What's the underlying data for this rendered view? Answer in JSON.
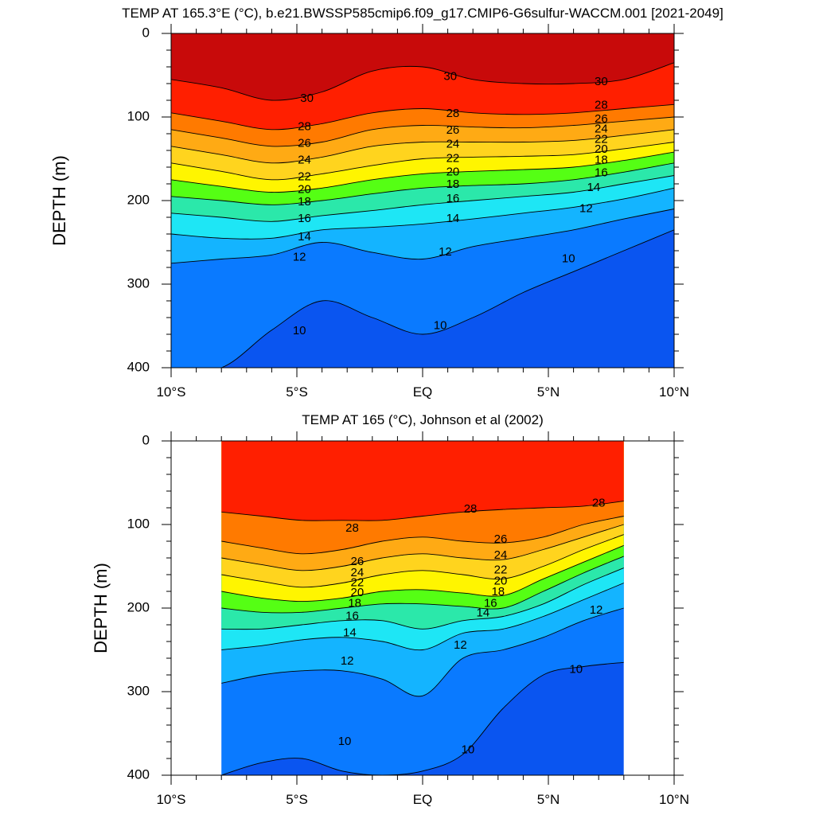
{
  "chart_data": [
    {
      "type": "contour",
      "title": "TEMP AT 165.3°E (°C), b.e21.BWSSP585cmip6.f09_g17.CMIP6-G6sulfur-WACCM.001 [2021-2049]",
      "ylabel": "DEPTH (m)",
      "xlabel": "",
      "xlim": [
        -10,
        10
      ],
      "ylim": [
        400,
        0
      ],
      "data_extent_x": [
        -10,
        10
      ],
      "x_ticks": [
        {
          "value": -10,
          "label": "10°S"
        },
        {
          "value": -5,
          "label": "5°S"
        },
        {
          "value": 0,
          "label": "EQ"
        },
        {
          "value": 5,
          "label": "5°N"
        },
        {
          "value": 10,
          "label": "10°N"
        }
      ],
      "y_ticks": [
        {
          "value": 0,
          "label": "0"
        },
        {
          "value": 100,
          "label": "100"
        },
        {
          "value": 200,
          "label": "200"
        },
        {
          "value": 300,
          "label": "300"
        },
        {
          "value": 400,
          "label": "400"
        }
      ],
      "isotherms": [
        {
          "value": 30,
          "depth": [
            55,
            65,
            80,
            70,
            45,
            40,
            55,
            60,
            60,
            55,
            35
          ]
        },
        {
          "value": 28,
          "depth": [
            95,
            105,
            115,
            108,
            95,
            90,
            95,
            97,
            95,
            90,
            85
          ]
        },
        {
          "value": 26,
          "depth": [
            115,
            125,
            135,
            130,
            115,
            110,
            112,
            113,
            110,
            105,
            100
          ]
        },
        {
          "value": 24,
          "depth": [
            135,
            145,
            155,
            148,
            135,
            130,
            130,
            130,
            128,
            122,
            115
          ]
        },
        {
          "value": 22,
          "depth": [
            155,
            165,
            175,
            168,
            158,
            150,
            148,
            147,
            145,
            138,
            130
          ]
        },
        {
          "value": 20,
          "depth": [
            175,
            183,
            190,
            185,
            175,
            168,
            165,
            163,
            160,
            152,
            142
          ]
        },
        {
          "value": 18,
          "depth": [
            195,
            200,
            205,
            200,
            192,
            185,
            182,
            180,
            175,
            166,
            155
          ]
        },
        {
          "value": 16,
          "depth": [
            215,
            220,
            225,
            218,
            212,
            205,
            200,
            195,
            190,
            180,
            170
          ]
        },
        {
          "value": 14,
          "depth": [
            240,
            245,
            245,
            235,
            232,
            228,
            222,
            215,
            208,
            198,
            185
          ]
        },
        {
          "value": 12,
          "depth": [
            275,
            270,
            265,
            250,
            262,
            270,
            255,
            245,
            235,
            222,
            210
          ]
        },
        {
          "value": 10,
          "depth": [
            440,
            400,
            355,
            320,
            340,
            360,
            340,
            310,
            285,
            260,
            235
          ]
        }
      ],
      "contour_labels": [
        {
          "value": "30",
          "x": -4.6,
          "y": 78
        },
        {
          "value": "28",
          "x": -4.7,
          "y": 112
        },
        {
          "value": "26",
          "x": -4.7,
          "y": 132
        },
        {
          "value": "24",
          "x": -4.7,
          "y": 152
        },
        {
          "value": "22",
          "x": -4.7,
          "y": 172
        },
        {
          "value": "20",
          "x": -4.7,
          "y": 187
        },
        {
          "value": "18",
          "x": -4.7,
          "y": 202
        },
        {
          "value": "16",
          "x": -4.7,
          "y": 222
        },
        {
          "value": "14",
          "x": -4.7,
          "y": 244
        },
        {
          "value": "12",
          "x": -4.9,
          "y": 268
        },
        {
          "value": "10",
          "x": -4.9,
          "y": 356
        },
        {
          "value": "30",
          "x": 1.1,
          "y": 52
        },
        {
          "value": "28",
          "x": 1.2,
          "y": 96
        },
        {
          "value": "26",
          "x": 1.2,
          "y": 116
        },
        {
          "value": "24",
          "x": 1.2,
          "y": 133
        },
        {
          "value": "22",
          "x": 1.2,
          "y": 150
        },
        {
          "value": "20",
          "x": 1.2,
          "y": 166
        },
        {
          "value": "18",
          "x": 1.2,
          "y": 181
        },
        {
          "value": "16",
          "x": 1.2,
          "y": 198
        },
        {
          "value": "14",
          "x": 1.2,
          "y": 222
        },
        {
          "value": "12",
          "x": 0.9,
          "y": 262
        },
        {
          "value": "10",
          "x": 0.7,
          "y": 350
        },
        {
          "value": "30",
          "x": 7.1,
          "y": 58
        },
        {
          "value": "28",
          "x": 7.1,
          "y": 86
        },
        {
          "value": "26",
          "x": 7.1,
          "y": 103
        },
        {
          "value": "24",
          "x": 7.1,
          "y": 115
        },
        {
          "value": "22",
          "x": 7.1,
          "y": 127
        },
        {
          "value": "20",
          "x": 7.1,
          "y": 139
        },
        {
          "value": "18",
          "x": 7.1,
          "y": 152
        },
        {
          "value": "16",
          "x": 7.1,
          "y": 167
        },
        {
          "value": "14",
          "x": 6.8,
          "y": 185
        },
        {
          "value": "12",
          "x": 6.5,
          "y": 210
        },
        {
          "value": "10",
          "x": 5.8,
          "y": 270
        }
      ]
    },
    {
      "type": "contour",
      "title": "TEMP AT 165 (°C), Johnson et al (2002)",
      "ylabel": "DEPTH (m)",
      "xlabel": "",
      "xlim": [
        -10,
        10
      ],
      "ylim": [
        400,
        0
      ],
      "data_extent_x": [
        -8,
        8
      ],
      "x_ticks": [
        {
          "value": -10,
          "label": "10°S"
        },
        {
          "value": -5,
          "label": "5°S"
        },
        {
          "value": 0,
          "label": "EQ"
        },
        {
          "value": 5,
          "label": "5°N"
        },
        {
          "value": 10,
          "label": "10°N"
        }
      ],
      "y_ticks": [
        {
          "value": 0,
          "label": "0"
        },
        {
          "value": 100,
          "label": "100"
        },
        {
          "value": 200,
          "label": "200"
        },
        {
          "value": 300,
          "label": "300"
        },
        {
          "value": 400,
          "label": "400"
        }
      ],
      "isotherms": [
        {
          "value": 28,
          "depth": [
            85,
            90,
            95,
            95,
            95,
            90,
            85,
            82,
            80,
            78,
            72
          ]
        },
        {
          "value": 26,
          "depth": [
            120,
            128,
            135,
            130,
            120,
            115,
            120,
            122,
            115,
            100,
            90
          ]
        },
        {
          "value": 24,
          "depth": [
            140,
            148,
            155,
            150,
            140,
            135,
            140,
            142,
            130,
            115,
            100
          ]
        },
        {
          "value": 22,
          "depth": [
            160,
            168,
            175,
            170,
            160,
            155,
            160,
            165,
            150,
            130,
            112
          ]
        },
        {
          "value": 20,
          "depth": [
            180,
            188,
            192,
            188,
            180,
            178,
            182,
            185,
            165,
            145,
            125
          ]
        },
        {
          "value": 18,
          "depth": [
            200,
            205,
            205,
            200,
            195,
            195,
            198,
            200,
            180,
            158,
            138
          ]
        },
        {
          "value": 16,
          "depth": [
            225,
            225,
            220,
            215,
            215,
            225,
            215,
            210,
            195,
            172,
            152
          ]
        },
        {
          "value": 14,
          "depth": [
            250,
            245,
            238,
            235,
            240,
            250,
            230,
            225,
            210,
            190,
            170
          ]
        },
        {
          "value": 12,
          "depth": [
            290,
            280,
            275,
            275,
            285,
            305,
            260,
            250,
            235,
            215,
            200
          ]
        },
        {
          "value": 10,
          "depth": [
            400,
            385,
            380,
            395,
            400,
            395,
            375,
            320,
            280,
            270,
            265
          ]
        }
      ],
      "contour_labels": [
        {
          "value": "28",
          "x": -2.8,
          "y": 105
        },
        {
          "value": "26",
          "x": -2.6,
          "y": 145
        },
        {
          "value": "24",
          "x": -2.6,
          "y": 158
        },
        {
          "value": "22",
          "x": -2.6,
          "y": 170
        },
        {
          "value": "20",
          "x": -2.6,
          "y": 182
        },
        {
          "value": "18",
          "x": -2.7,
          "y": 195
        },
        {
          "value": "16",
          "x": -2.8,
          "y": 210
        },
        {
          "value": "14",
          "x": -2.9,
          "y": 230
        },
        {
          "value": "12",
          "x": -3.0,
          "y": 264
        },
        {
          "value": "10",
          "x": -3.1,
          "y": 360
        },
        {
          "value": "28",
          "x": 1.9,
          "y": 82
        },
        {
          "value": "26",
          "x": 3.1,
          "y": 118
        },
        {
          "value": "24",
          "x": 3.1,
          "y": 137
        },
        {
          "value": "22",
          "x": 3.1,
          "y": 155
        },
        {
          "value": "20",
          "x": 3.1,
          "y": 168
        },
        {
          "value": "18",
          "x": 3.0,
          "y": 181
        },
        {
          "value": "16",
          "x": 2.7,
          "y": 195
        },
        {
          "value": "14",
          "x": 2.4,
          "y": 206
        },
        {
          "value": "12",
          "x": 1.5,
          "y": 245
        },
        {
          "value": "10",
          "x": 1.8,
          "y": 370
        },
        {
          "value": "28",
          "x": 7.0,
          "y": 75
        },
        {
          "value": "12",
          "x": 6.9,
          "y": 203
        },
        {
          "value": "10",
          "x": 6.1,
          "y": 274
        }
      ]
    }
  ],
  "colormap": [
    {
      "from": 30,
      "to": 31,
      "color": "#c80a0a"
    },
    {
      "from": 29,
      "to": 30,
      "color": "#e01515"
    },
    {
      "from": 28,
      "to": 29,
      "color": "#ff1f00"
    },
    {
      "from": 27,
      "to": 28,
      "color": "#ff5a00"
    },
    {
      "from": 26,
      "to": 27,
      "color": "#ff7a00"
    },
    {
      "from": 25,
      "to": 26,
      "color": "#ff9600"
    },
    {
      "from": 24,
      "to": 25,
      "color": "#ffaa14"
    },
    {
      "from": 23,
      "to": 24,
      "color": "#ffc019"
    },
    {
      "from": 22,
      "to": 23,
      "color": "#ffd41e"
    },
    {
      "from": 21,
      "to": 22,
      "color": "#ffe819"
    },
    {
      "from": 20,
      "to": 21,
      "color": "#fff500"
    },
    {
      "from": 19,
      "to": 20,
      "color": "#ccff00"
    },
    {
      "from": 18,
      "to": 19,
      "color": "#55ff14"
    },
    {
      "from": 17,
      "to": 18,
      "color": "#14e65a"
    },
    {
      "from": 16,
      "to": 17,
      "color": "#2be8aa"
    },
    {
      "from": 15,
      "to": 16,
      "color": "#2ef0d8"
    },
    {
      "from": 14,
      "to": 15,
      "color": "#1ee6f5"
    },
    {
      "from": 13,
      "to": 14,
      "color": "#2ad2ff"
    },
    {
      "from": 12,
      "to": 13,
      "color": "#14b4ff"
    },
    {
      "from": 11,
      "to": 12,
      "color": "#0a9bff"
    },
    {
      "from": 10,
      "to": 11,
      "color": "#0a7aff"
    },
    {
      "from": 9,
      "to": 10,
      "color": "#0a55f0"
    },
    {
      "from": 8,
      "to": 9,
      "color": "#0a1ee6"
    },
    {
      "from": 7,
      "to": 8,
      "color": "#5a19d2"
    }
  ]
}
